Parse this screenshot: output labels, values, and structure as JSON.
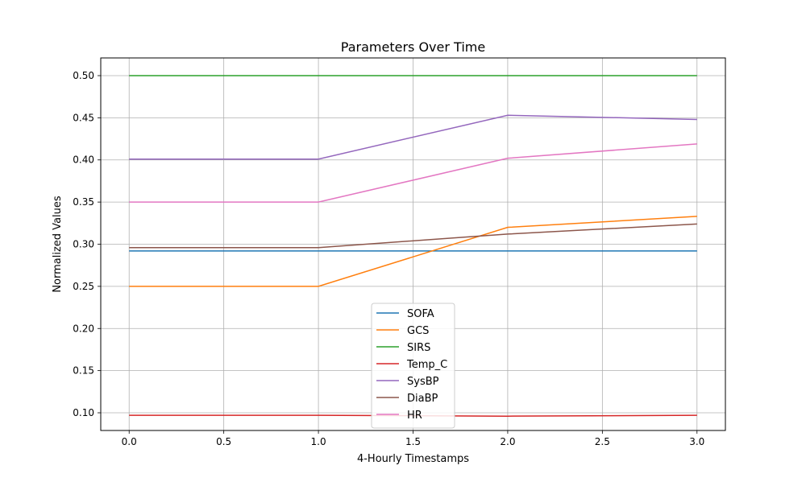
{
  "chart_data": {
    "type": "line",
    "title": "Parameters Over Time",
    "xlabel": "4-Hourly Timestamps",
    "ylabel": "Normalized Values",
    "x": [
      0,
      1,
      2,
      3
    ],
    "xlim": [
      -0.15,
      3.15
    ],
    "ylim": [
      0.079,
      0.521
    ],
    "xticks": [
      0.0,
      0.5,
      1.0,
      1.5,
      2.0,
      2.5,
      3.0
    ],
    "xtick_labels": [
      "0.0",
      "0.5",
      "1.0",
      "1.5",
      "2.0",
      "2.5",
      "3.0"
    ],
    "yticks": [
      0.1,
      0.15,
      0.2,
      0.25,
      0.3,
      0.35,
      0.4,
      0.45,
      0.5
    ],
    "ytick_labels": [
      "0.10",
      "0.15",
      "0.20",
      "0.25",
      "0.30",
      "0.35",
      "0.40",
      "0.45",
      "0.50"
    ],
    "grid": true,
    "legend_position": "lower-center",
    "series": [
      {
        "name": "SOFA",
        "color": "#1f77b4",
        "values": [
          0.292,
          0.292,
          0.292,
          0.292
        ]
      },
      {
        "name": "GCS",
        "color": "#ff7f0e",
        "values": [
          0.25,
          0.25,
          0.32,
          0.333
        ]
      },
      {
        "name": "SIRS",
        "color": "#2ca02c",
        "values": [
          0.5,
          0.5,
          0.5,
          0.5
        ]
      },
      {
        "name": "Temp_C",
        "color": "#d62728",
        "values": [
          0.097,
          0.097,
          0.096,
          0.097
        ]
      },
      {
        "name": "SysBP",
        "color": "#9467bd",
        "values": [
          0.401,
          0.401,
          0.453,
          0.448
        ]
      },
      {
        "name": "DiaBP",
        "color": "#8c564b",
        "values": [
          0.296,
          0.296,
          0.312,
          0.324
        ]
      },
      {
        "name": "HR",
        "color": "#e377c2",
        "values": [
          0.35,
          0.35,
          0.402,
          0.419
        ]
      }
    ]
  }
}
